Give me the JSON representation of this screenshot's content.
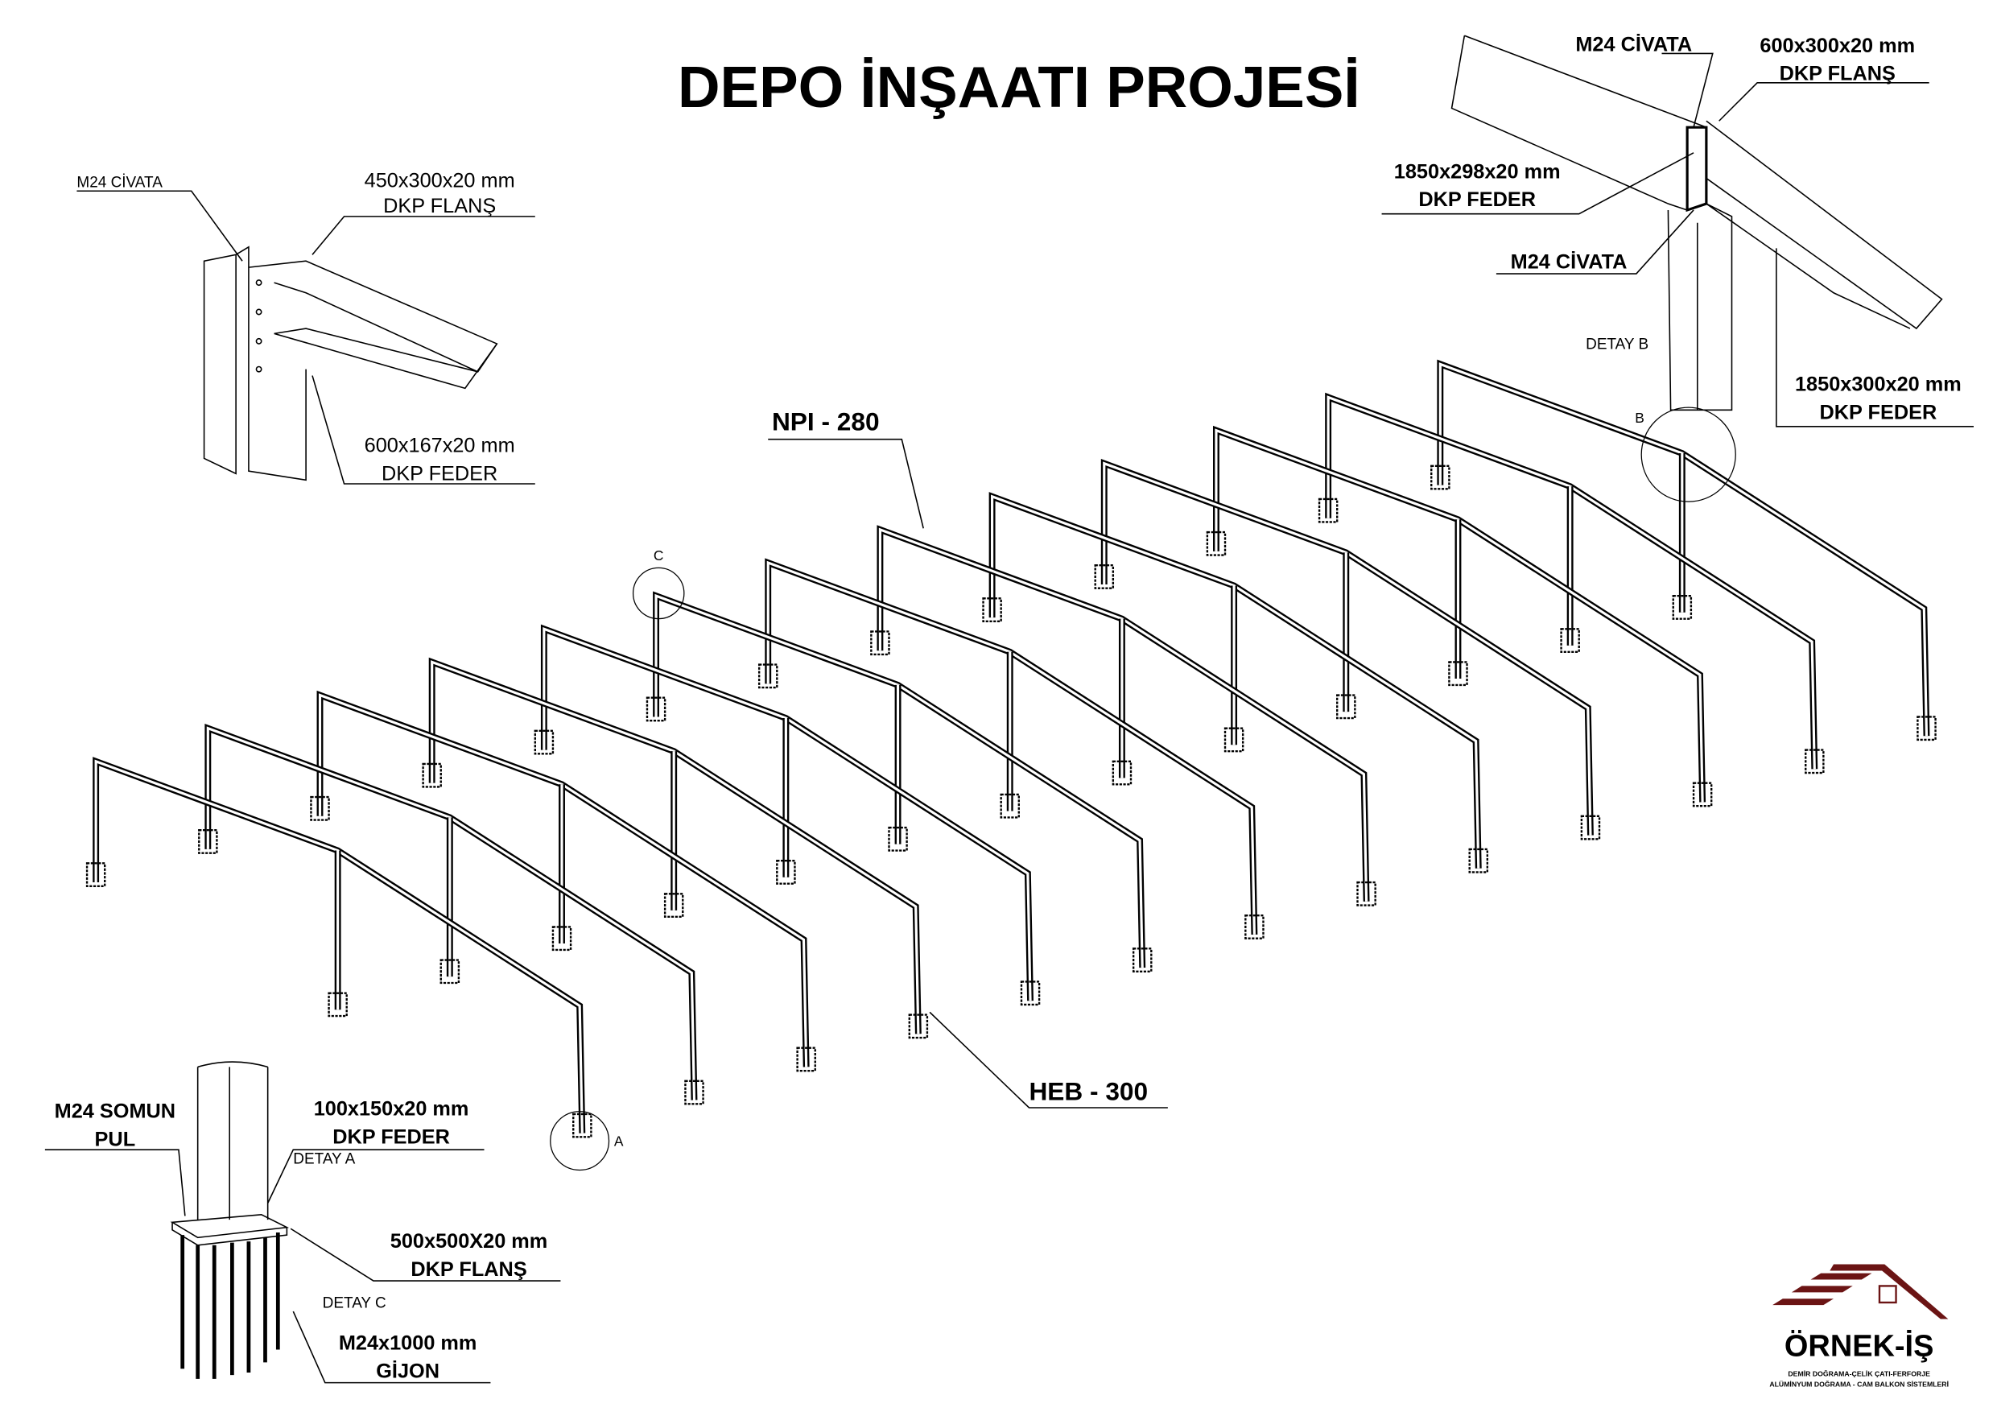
{
  "title": "DEPO İNŞAATI PROJESİ",
  "detail_top_left": {
    "bolt": "M24 CİVATA",
    "flange": [
      "450x300x20 mm",
      "DKP FLANŞ"
    ],
    "stiffener": [
      "600x167x20 mm",
      "DKP FEDER"
    ]
  },
  "detail_b": {
    "name": "DETAY B",
    "bolt_top": "M24 CİVATA",
    "flange": [
      "600x300x20 mm",
      "DKP FLANŞ"
    ],
    "stiffener_left": [
      "1850x298x20 mm",
      "DKP FEDER"
    ],
    "bolt_bottom": "M24 CİVATA",
    "stiffener_right": [
      "1850x300x20 mm",
      "DKP FEDER"
    ]
  },
  "detail_c": {
    "name": "DETAY C",
    "detail_a_name": "DETAY A",
    "nut": [
      "M24 SOMUN",
      "PUL"
    ],
    "stiffener": [
      "100x150x20 mm",
      "DKP FEDER"
    ],
    "flange": [
      "500x500X20 mm",
      "DKP FLANŞ"
    ],
    "anchor": [
      "M24x1000 mm",
      "GİJON"
    ]
  },
  "main": {
    "rafter_label": "NPI - 280",
    "column_label": "HEB - 300",
    "marker_a": "A",
    "marker_b": "B",
    "marker_c": "C",
    "frame_count": 13
  },
  "logo": {
    "name": "ÖRNEK-İŞ",
    "tagline": [
      "DEMİR DOĞRAMA-ÇELİK ÇATI-FERFORJE",
      "ALÜMİNYUM DOĞRAMA - CAM BALKON SİSTEMLERİ"
    ],
    "color": "#6b1414"
  }
}
